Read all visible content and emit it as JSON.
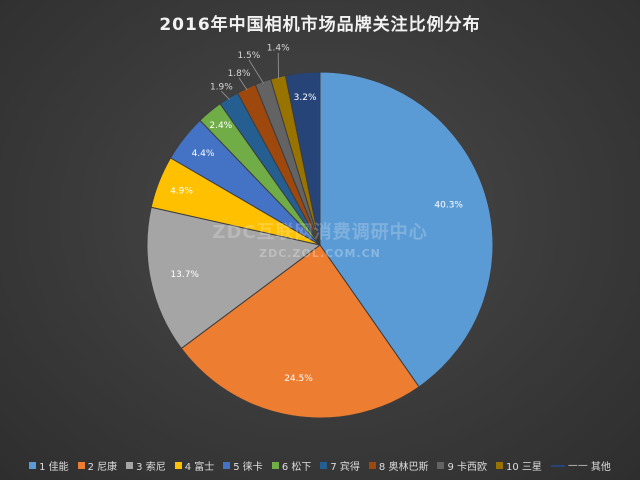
{
  "chart_data": {
    "type": "pie",
    "title": "2016年中国相机市场品牌关注比例分布",
    "categories": [
      "1 佳能",
      "2 尼康",
      "3 索尼",
      "4 富士",
      "5 徕卡",
      "6 松下",
      "7 宾得",
      "8 奥林巴斯",
      "9 卡西欧",
      "10 三星",
      "—— 其他"
    ],
    "values": [
      40.3,
      24.5,
      13.7,
      4.9,
      4.4,
      2.4,
      1.9,
      1.8,
      1.5,
      1.4,
      3.2
    ],
    "value_labels": [
      "40.3%",
      "24.5%",
      "13.7%",
      "4.9%",
      "4.4%",
      "2.4%",
      "1.9%",
      "1.8%",
      "1.5%",
      "1.4%",
      "3.2%"
    ],
    "colors": [
      "#5b9bd5",
      "#ed7d31",
      "#a5a5a5",
      "#ffc000",
      "#4472c4",
      "#70ad47",
      "#255e91",
      "#9e480e",
      "#636363",
      "#997300",
      "#264478"
    ],
    "legend_position": "bottom",
    "start_angle": "12 o'clock, clockwise"
  },
  "watermark": {
    "main": "ZDC互联网消费调研中心",
    "sub": "ZDC.ZOL.COM.CN"
  }
}
